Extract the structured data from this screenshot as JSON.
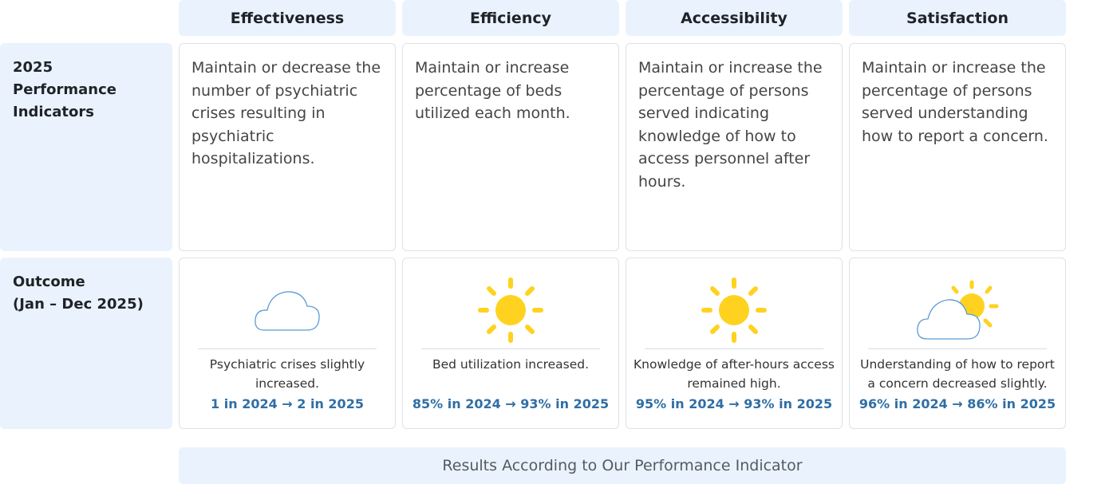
{
  "columns": [
    {
      "label": "Effectiveness"
    },
    {
      "label": "Efficiency"
    },
    {
      "label": "Accessibility"
    },
    {
      "label": "Satisfaction"
    }
  ],
  "rows": {
    "indicators": {
      "label_line1": "2025 Performance",
      "label_line2": "Indicators"
    },
    "outcome": {
      "label_line1": "Outcome",
      "label_line2": "(Jan – Dec 2025)"
    }
  },
  "indicators": [
    {
      "text": "Maintain or decrease the number of psychiatric crises resulting in psychiatric hospitalizations."
    },
    {
      "text": "Maintain or increase percentage of beds utilized each month."
    },
    {
      "text": "Maintain or increase the percentage of persons served indicating knowledge of how to access personnel after hours."
    },
    {
      "text": "Maintain or increase the percentage of persons served understanding how to report a concern."
    }
  ],
  "outcomes": [
    {
      "icon": "cloud-icon",
      "text": "Psychiatric crises slightly increased.",
      "metric": "1 in 2024 → 2 in 2025"
    },
    {
      "icon": "sun-icon",
      "text": "Bed utilization increased.",
      "metric": "85% in 2024 → 93% in 2025"
    },
    {
      "icon": "sun-icon",
      "text": "Knowledge of after-hours access remained high.",
      "metric": "95% in 2024 → 93% in 2025"
    },
    {
      "icon": "partly-cloudy-icon",
      "text": "Understanding of how to report a concern decreased slightly.",
      "metric": "96% in 2024 → 86% in 2025"
    }
  ],
  "footer": {
    "label": "Results According to Our Performance Indicator"
  },
  "colors": {
    "header_bg": "#eaf3fd",
    "metric": "#2f6ea5",
    "sun": "#ffd21f",
    "cloud_stroke": "#5b9bd5"
  }
}
